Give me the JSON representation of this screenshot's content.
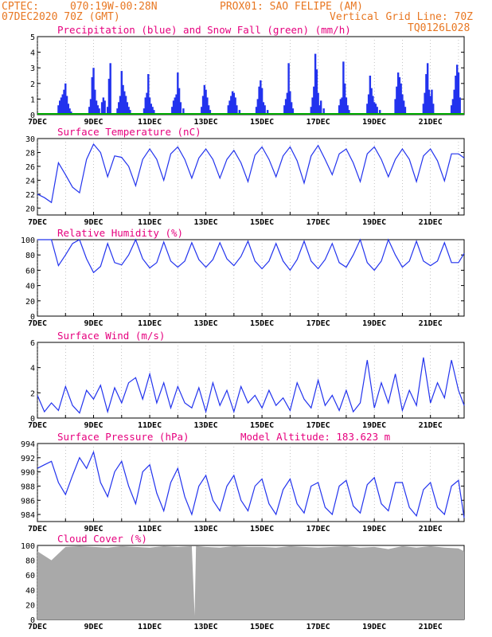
{
  "header": {
    "line1_left": "CPTEC:",
    "line1_mid": "070:19W-00:28N",
    "line1_right": "PROX01: SAO FELIPE (AM)",
    "line2_left": "07DEC2020 70Z (GMT)",
    "line2_right": "Vertical Grid Line: 70Z",
    "line3_right": "TQ0126L028"
  },
  "colors": {
    "header_text": "#e87722",
    "panel_title": "#e6007e",
    "series_blue": "#2233ee",
    "snow_green": "#00aa00",
    "cloud_gray": "#a9a9a9",
    "grid": "#888888"
  },
  "date_ticks": [
    "7DEC",
    "9DEC",
    "11DEC",
    "13DEC",
    "15DEC",
    "17DEC",
    "19DEC",
    "21DEC"
  ],
  "chart_data": [
    {
      "type": "bar",
      "title": "Precipitation (blue) and Snow Fall (green) (mm/h)",
      "ylim": [
        0,
        5
      ],
      "yticks": [
        0,
        1,
        2,
        3,
        4,
        5
      ],
      "x_range_days": [
        7,
        22.2
      ],
      "series": [
        {
          "color": "blue",
          "values_comment": "",
          "x": [
            7.75,
            7.8,
            7.85,
            7.9,
            7.95,
            8.0,
            8.05,
            8.1,
            8.15,
            8.2,
            8.85,
            8.9,
            8.95,
            9.0,
            9.05,
            9.1,
            9.15,
            9.2,
            9.3,
            9.35,
            9.4,
            9.5,
            9.55,
            9.6,
            9.85,
            9.9,
            9.95,
            10.0,
            10.05,
            10.1,
            10.15,
            10.2,
            10.25,
            10.3,
            10.8,
            10.85,
            10.9,
            10.95,
            11.0,
            11.05,
            11.1,
            11.15,
            11.8,
            11.85,
            11.9,
            11.95,
            12.0,
            12.05,
            12.1,
            12.2,
            12.85,
            12.9,
            12.95,
            13.0,
            13.05,
            13.1,
            13.15,
            13.8,
            13.85,
            13.9,
            13.95,
            14.0,
            14.05,
            14.1,
            14.2,
            14.8,
            14.85,
            14.9,
            14.95,
            15.0,
            15.05,
            15.1,
            15.2,
            15.8,
            15.85,
            15.9,
            15.95,
            16.0,
            16.05,
            16.1,
            16.75,
            16.8,
            16.85,
            16.9,
            16.95,
            17.0,
            17.05,
            17.1,
            17.2,
            17.75,
            17.8,
            17.85,
            17.9,
            17.95,
            18.0,
            18.05,
            18.1,
            18.75,
            18.8,
            18.85,
            18.9,
            18.95,
            19.0,
            19.05,
            19.1,
            19.2,
            19.75,
            19.8,
            19.85,
            19.9,
            19.95,
            20.0,
            20.05,
            20.1,
            20.75,
            20.8,
            20.85,
            20.9,
            20.95,
            21.0,
            21.05,
            21.1,
            21.75,
            21.8,
            21.85,
            21.9,
            21.95,
            22.0,
            22.05
          ],
          "y": [
            0.6,
            0.9,
            1.1,
            1.3,
            1.6,
            2.0,
            1.2,
            0.7,
            0.4,
            0.2,
            0.5,
            1.0,
            2.4,
            3.0,
            1.6,
            0.9,
            0.6,
            0.4,
            0.8,
            1.1,
            0.9,
            0.5,
            2.3,
            3.3,
            0.4,
            0.8,
            1.2,
            2.8,
            1.9,
            1.5,
            1.2,
            0.8,
            0.5,
            0.3,
            0.4,
            1.1,
            1.4,
            2.6,
            1.1,
            0.7,
            0.5,
            0.3,
            0.5,
            0.9,
            1.1,
            1.3,
            2.7,
            1.7,
            0.8,
            0.4,
            0.5,
            1.2,
            1.9,
            1.6,
            1.1,
            0.6,
            0.3,
            0.6,
            0.9,
            1.2,
            1.5,
            1.4,
            1.1,
            0.6,
            0.3,
            0.5,
            1.0,
            1.8,
            2.2,
            1.7,
            0.8,
            0.6,
            0.3,
            0.6,
            1.0,
            1.4,
            3.3,
            1.5,
            0.8,
            0.4,
            0.5,
            1.1,
            1.8,
            3.9,
            2.9,
            1.4,
            0.6,
            0.9,
            0.4,
            0.6,
            1.0,
            1.1,
            3.4,
            2.0,
            1.1,
            0.6,
            0.3,
            0.7,
            1.3,
            2.5,
            1.7,
            1.2,
            0.8,
            0.7,
            0.5,
            0.3,
            1.0,
            1.8,
            2.7,
            2.4,
            2.0,
            1.3,
            0.9,
            0.5,
            0.7,
            1.4,
            2.6,
            3.3,
            1.6,
            1.2,
            1.6,
            0.7,
            0.6,
            1.0,
            1.6,
            2.5,
            3.2,
            2.7,
            1.1
          ]
        },
        {
          "color": "green",
          "name": "",
          "x": [
            7,
            22.2
          ],
          "y": [
            0,
            0
          ]
        }
      ]
    },
    {
      "type": "line",
      "title": "Surface Temperature (nC)",
      "ylim": [
        19,
        30
      ],
      "yticks": [
        20,
        22,
        24,
        26,
        28,
        30
      ],
      "x": [
        7.0,
        7.25,
        7.5,
        7.75,
        8.0,
        8.25,
        8.5,
        8.75,
        9.0,
        9.25,
        9.5,
        9.75,
        10.0,
        10.25,
        10.5,
        10.75,
        11.0,
        11.25,
        11.5,
        11.75,
        12.0,
        12.25,
        12.5,
        12.75,
        13.0,
        13.25,
        13.5,
        13.75,
        14.0,
        14.25,
        14.5,
        14.75,
        15.0,
        15.25,
        15.5,
        15.75,
        16.0,
        16.25,
        16.5,
        16.75,
        17.0,
        17.25,
        17.5,
        17.75,
        18.0,
        18.25,
        18.5,
        18.75,
        19.0,
        19.25,
        19.5,
        19.75,
        20.0,
        20.25,
        20.5,
        20.75,
        21.0,
        21.25,
        21.5,
        21.75,
        22.0,
        22.2
      ],
      "y": [
        22.0,
        21.5,
        20.8,
        26.5,
        24.8,
        23.0,
        22.2,
        27.0,
        29.2,
        28.0,
        24.5,
        27.5,
        27.3,
        26.0,
        23.2,
        27.0,
        28.5,
        27.0,
        24.0,
        27.8,
        28.8,
        27.0,
        24.3,
        27.2,
        28.5,
        27.0,
        24.3,
        27.0,
        28.3,
        26.5,
        23.8,
        27.6,
        28.8,
        27.0,
        24.5,
        27.5,
        28.8,
        26.8,
        23.6,
        27.5,
        29.0,
        27.0,
        24.8,
        27.8,
        28.5,
        26.5,
        23.8,
        27.8,
        28.8,
        27.0,
        24.5,
        27.0,
        28.5,
        27.0,
        23.8,
        27.5,
        28.5,
        26.8,
        23.9,
        27.8,
        27.8,
        27.2
      ]
    },
    {
      "type": "line",
      "title": "Relative Humidity (%)",
      "ylim": [
        0,
        100
      ],
      "yticks": [
        0,
        20,
        40,
        60,
        80,
        100
      ],
      "x": [
        7.0,
        7.25,
        7.5,
        7.75,
        8.0,
        8.25,
        8.5,
        8.75,
        9.0,
        9.25,
        9.5,
        9.75,
        10.0,
        10.25,
        10.5,
        10.75,
        11.0,
        11.25,
        11.5,
        11.75,
        12.0,
        12.25,
        12.5,
        12.75,
        13.0,
        13.25,
        13.5,
        13.75,
        14.0,
        14.25,
        14.5,
        14.75,
        15.0,
        15.25,
        15.5,
        15.75,
        16.0,
        16.25,
        16.5,
        16.75,
        17.0,
        17.25,
        17.5,
        17.75,
        18.0,
        18.25,
        18.5,
        18.75,
        19.0,
        19.25,
        19.5,
        19.75,
        20.0,
        20.25,
        20.5,
        20.75,
        21.0,
        21.25,
        21.5,
        21.75,
        22.0,
        22.2
      ],
      "y": [
        100,
        100,
        100,
        66,
        80,
        95,
        100,
        75,
        57,
        65,
        95,
        70,
        67,
        80,
        100,
        75,
        63,
        70,
        97,
        72,
        64,
        72,
        96,
        74,
        64,
        74,
        96,
        75,
        66,
        78,
        98,
        72,
        62,
        72,
        95,
        72,
        60,
        74,
        98,
        72,
        62,
        74,
        95,
        70,
        64,
        80,
        100,
        70,
        60,
        72,
        100,
        80,
        64,
        72,
        98,
        72,
        66,
        72,
        96,
        70,
        70,
        82
      ]
    },
    {
      "type": "line",
      "title": "Surface Wind (m/s)",
      "ylim": [
        0,
        6
      ],
      "yticks": [
        0,
        2,
        4,
        6
      ],
      "x": [
        7.0,
        7.25,
        7.5,
        7.75,
        8.0,
        8.25,
        8.5,
        8.75,
        9.0,
        9.25,
        9.5,
        9.75,
        10.0,
        10.25,
        10.5,
        10.75,
        11.0,
        11.25,
        11.5,
        11.75,
        12.0,
        12.25,
        12.5,
        12.75,
        13.0,
        13.25,
        13.5,
        13.75,
        14.0,
        14.25,
        14.5,
        14.75,
        15.0,
        15.25,
        15.5,
        15.75,
        16.0,
        16.25,
        16.5,
        16.75,
        17.0,
        17.25,
        17.5,
        17.75,
        18.0,
        18.25,
        18.5,
        18.75,
        19.0,
        19.25,
        19.5,
        19.75,
        20.0,
        20.25,
        20.5,
        20.75,
        21.0,
        21.25,
        21.5,
        21.75,
        22.0,
        22.2
      ],
      "y": [
        1.8,
        0.5,
        1.2,
        0.6,
        2.5,
        1.0,
        0.4,
        2.2,
        1.5,
        2.6,
        0.5,
        2.4,
        1.2,
        2.8,
        3.2,
        1.5,
        3.5,
        1.2,
        2.8,
        0.8,
        2.5,
        1.2,
        0.8,
        2.4,
        0.5,
        2.8,
        1.0,
        2.2,
        0.5,
        2.5,
        1.2,
        1.8,
        0.8,
        2.2,
        1.0,
        1.6,
        0.6,
        2.8,
        1.5,
        0.8,
        3.0,
        1.0,
        1.8,
        0.6,
        2.2,
        0.5,
        1.2,
        4.6,
        0.8,
        2.8,
        1.2,
        3.5,
        0.6,
        2.2,
        1.0,
        4.8,
        1.2,
        2.8,
        1.6,
        4.6,
        2.2,
        1.0
      ]
    },
    {
      "type": "line",
      "title": "Surface Pressure (hPa)",
      "annotation": "Model Altitude: 183.623 m",
      "ylim": [
        983,
        994
      ],
      "yticks": [
        984,
        986,
        988,
        990,
        992,
        994
      ],
      "x": [
        7.0,
        7.25,
        7.5,
        7.75,
        8.0,
        8.25,
        8.5,
        8.75,
        9.0,
        9.25,
        9.5,
        9.75,
        10.0,
        10.25,
        10.5,
        10.75,
        11.0,
        11.25,
        11.5,
        11.75,
        12.0,
        12.25,
        12.5,
        12.75,
        13.0,
        13.25,
        13.5,
        13.75,
        14.0,
        14.25,
        14.5,
        14.75,
        15.0,
        15.25,
        15.5,
        15.75,
        16.0,
        16.25,
        16.5,
        16.75,
        17.0,
        17.25,
        17.5,
        17.75,
        18.0,
        18.25,
        18.5,
        18.75,
        19.0,
        19.25,
        19.5,
        19.75,
        20.0,
        20.25,
        20.5,
        20.75,
        21.0,
        21.25,
        21.5,
        21.75,
        22.0,
        22.2
      ],
      "y": [
        990.5,
        991.0,
        991.5,
        988.5,
        986.8,
        989.5,
        992.0,
        990.5,
        992.8,
        988.5,
        986.5,
        990.0,
        991.5,
        988.0,
        985.5,
        990.0,
        991.0,
        987.0,
        984.5,
        988.5,
        990.5,
        986.5,
        984.0,
        988.0,
        989.5,
        986.0,
        984.5,
        988.0,
        989.5,
        986.0,
        984.5,
        988.0,
        989.0,
        985.5,
        984.0,
        987.5,
        989.0,
        985.5,
        984.2,
        988.0,
        988.5,
        985.0,
        984.0,
        988.0,
        988.8,
        985.2,
        984.2,
        988.2,
        989.2,
        985.5,
        984.5,
        988.5,
        988.5,
        985.0,
        983.8,
        987.5,
        988.5,
        985.0,
        984.0,
        988.0,
        988.8,
        983.5
      ]
    },
    {
      "type": "area",
      "title": "Cloud Cover (%)",
      "ylim": [
        0,
        100
      ],
      "yticks": [
        0,
        20,
        40,
        60,
        80,
        100
      ],
      "x": [
        7.0,
        7.5,
        8.0,
        8.5,
        9.0,
        9.5,
        10.0,
        10.5,
        11.0,
        11.5,
        12.0,
        12.5,
        12.6,
        12.65,
        12.7,
        13.0,
        13.5,
        14.0,
        14.5,
        15.0,
        15.5,
        16.0,
        16.5,
        17.0,
        17.5,
        18.0,
        18.5,
        19.0,
        19.5,
        20.0,
        20.5,
        21.0,
        21.5,
        22.0,
        22.2
      ],
      "y": [
        92,
        80,
        98,
        99,
        98,
        97,
        99,
        98,
        97,
        99,
        98,
        99,
        5,
        99,
        99,
        98,
        97,
        99,
        98,
        98,
        97,
        99,
        98,
        97,
        98,
        99,
        97,
        98,
        95,
        99,
        97,
        99,
        97,
        96,
        92
      ]
    }
  ]
}
